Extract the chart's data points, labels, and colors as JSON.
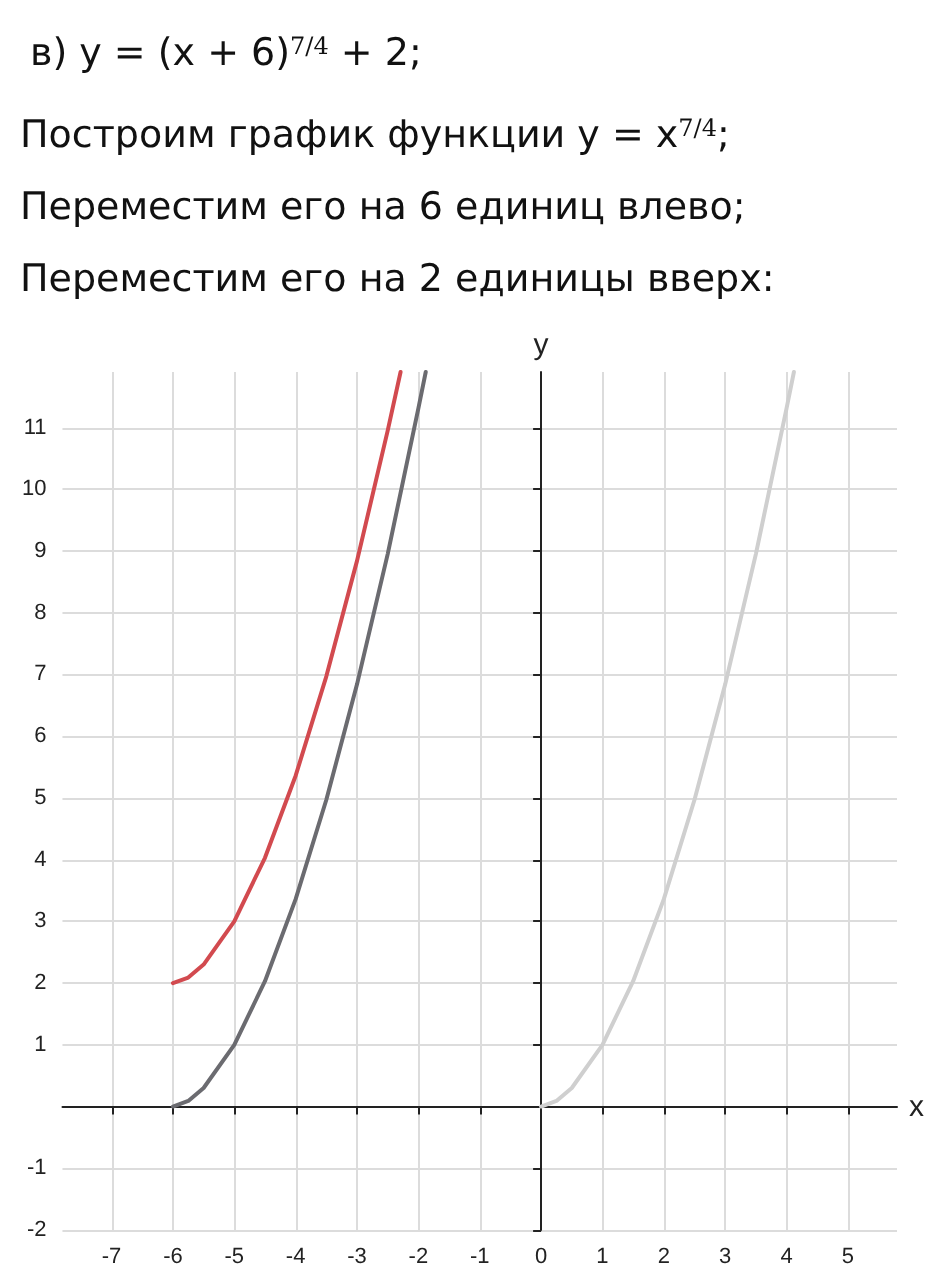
{
  "chart_data": {
    "type": "line",
    "title": "в) y = (x + 6)$^{7/4}$ + 2;",
    "annotations": [
      "Построим график функции y = x$^{7/4}$;",
      "Переместим его на 6 единиц влево;",
      "Переместим его на 2 единицы вверх:"
    ],
    "xlabel": "x",
    "ylabel": "y",
    "series": [
      {
        "color": "#d24a4f",
        "x": [
          -6,
          -5.75,
          -5.5,
          -5,
          -4.5,
          -4,
          -3.5,
          -3,
          -2.5,
          -2.29
        ],
        "values": [
          2,
          2.09,
          2.3,
          3,
          4.03,
          5.36,
          6.97,
          8.84,
          10.95,
          11.9
        ]
      },
      {
        "color": "#6b6b70",
        "x": [
          -6,
          -5.75,
          -5.5,
          -5,
          -4.5,
          -4,
          -3.5,
          -3,
          -2.5,
          -2,
          -1.88
        ],
        "values": [
          0,
          0.09,
          0.3,
          1,
          2.03,
          3.36,
          4.97,
          6.84,
          8.95,
          11.31,
          11.9
        ]
      },
      {
        "color": "#cfcfcf",
        "x": [
          0,
          0.25,
          0.5,
          1,
          1.5,
          2,
          2.5,
          3,
          3.5,
          4,
          4.12
        ],
        "values": [
          0,
          0.09,
          0.3,
          1,
          2.03,
          3.36,
          4.97,
          6.84,
          8.95,
          11.31,
          11.9
        ]
      }
    ],
    "xlim": [
      -7.8,
      5.8
    ],
    "ylim": [
      -2,
      11.9
    ],
    "xticks": [
      -7,
      -6,
      -5,
      -4,
      -3,
      -2,
      -1,
      {
        "value": 0,
        "label": "0"
      },
      1,
      2,
      3,
      4,
      5
    ],
    "yticks": [
      -2,
      -1,
      {
        "value": 0,
        "label": null
      },
      1,
      2,
      3,
      4,
      5,
      6,
      7,
      8,
      9,
      10,
      11
    ],
    "grid": true,
    "marker": "none",
    "line_style": "solid"
  }
}
